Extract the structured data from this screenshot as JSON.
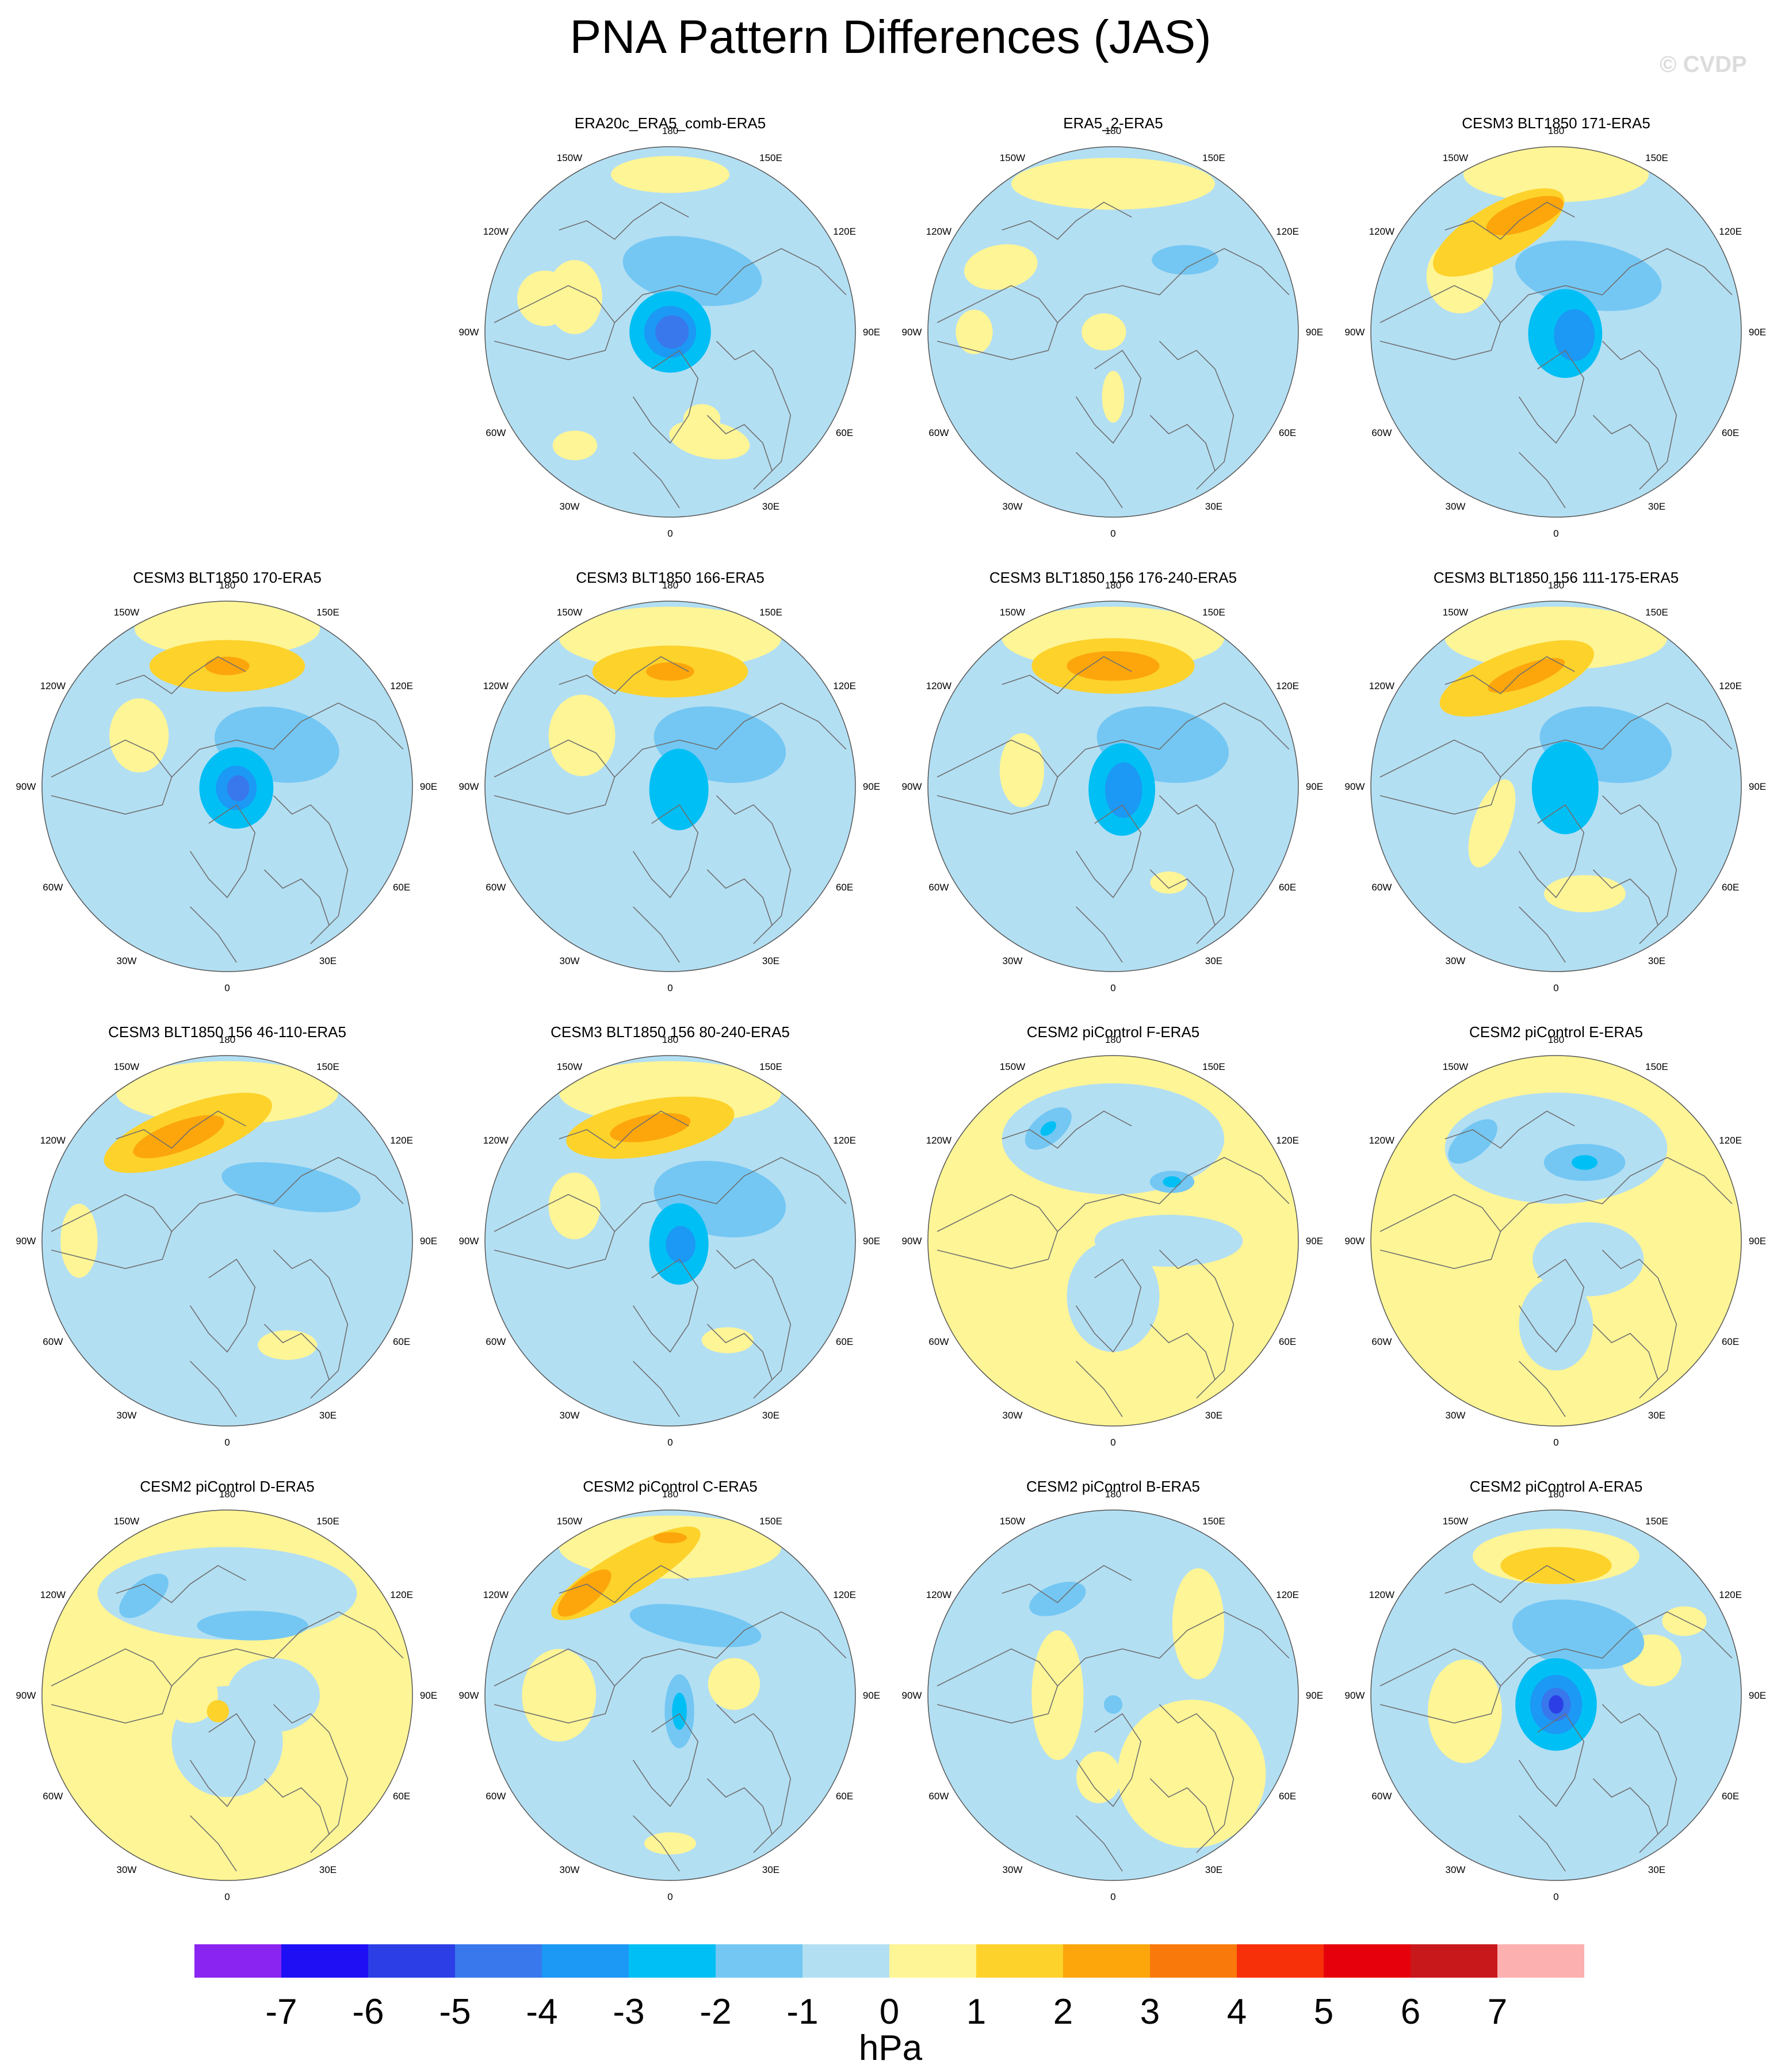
{
  "title": "PNA Pattern Differences (JAS)",
  "watermark": "© CVDP",
  "units": "hPa",
  "lon_labels": [
    "180",
    "150E",
    "120E",
    "90E",
    "60E",
    "30E",
    "0",
    "30W",
    "60W",
    "90W",
    "120W",
    "150W"
  ],
  "colorbar": {
    "labels": [
      "-7",
      "-6",
      "-5",
      "-4",
      "-3",
      "-2",
      "-1",
      "0",
      "1",
      "2",
      "3",
      "4",
      "5",
      "6",
      "7"
    ],
    "colors": [
      "#8a24f0",
      "#1e0ff5",
      "#2c3fe6",
      "#3878ec",
      "#1c98f5",
      "#00bff4",
      "#74c7f3",
      "#b3dff3",
      "#fef596",
      "#fdd22b",
      "#fca60c",
      "#f97a0a",
      "#f8300a",
      "#e6000c",
      "#c9181c",
      "#fdb0b0"
    ]
  },
  "panels": [
    {
      "title": "ERA20c_ERA5_comb-ERA5",
      "row": 0,
      "col": 1,
      "bg": "neg",
      "blobs": [
        {
          "lon": 180,
          "r": 0.85,
          "w": 0.32,
          "h": 0.1,
          "rot": 0,
          "lvl": 1
        },
        {
          "lon": 110,
          "r": 0.55,
          "w": 0.15,
          "h": 0.2,
          "rot": 0,
          "lvl": 1
        },
        {
          "lon": 105,
          "r": 0.7,
          "w": 0.15,
          "h": 0.15,
          "rot": 0,
          "lvl": 1
        },
        {
          "lon": 340,
          "r": 0.5,
          "w": 0.1,
          "h": 0.08,
          "rot": 0,
          "lvl": 1
        },
        {
          "lon": 340,
          "r": 0.62,
          "w": 0.22,
          "h": 0.1,
          "rot": 10,
          "lvl": 1
        },
        {
          "lon": 40,
          "r": 0.8,
          "w": 0.12,
          "h": 0.08,
          "rot": 0,
          "lvl": 1
        },
        {
          "lon": 200,
          "r": 0.35,
          "w": 0.38,
          "h": 0.18,
          "rot": 10,
          "lvl": -2
        },
        {
          "lon": 270,
          "r": 0.0,
          "w": 0.22,
          "h": 0.22,
          "rot": 0,
          "lvl": -3
        },
        {
          "lon": 270,
          "r": 0.0,
          "w": 0.14,
          "h": 0.14,
          "rot": 0,
          "lvl": -4
        },
        {
          "lon": 270,
          "r": 0.01,
          "w": 0.09,
          "h": 0.09,
          "rot": 0,
          "lvl": -5
        }
      ]
    },
    {
      "title": "ERA5_2-ERA5",
      "row": 0,
      "col": 2,
      "bg": "neg",
      "blobs": [
        {
          "lon": 180,
          "r": 0.8,
          "w": 0.55,
          "h": 0.14,
          "rot": 0,
          "lvl": 1
        },
        {
          "lon": 120,
          "r": 0.7,
          "w": 0.2,
          "h": 0.12,
          "rot": -10,
          "lvl": 1
        },
        {
          "lon": 90,
          "r": 0.75,
          "w": 0.1,
          "h": 0.12,
          "rot": 0,
          "lvl": 1
        },
        {
          "lon": 90,
          "r": 0.05,
          "w": 0.12,
          "h": 0.1,
          "rot": 0,
          "lvl": 1
        },
        {
          "lon": 0,
          "r": 0.35,
          "w": 0.06,
          "h": 0.14,
          "rot": 0,
          "lvl": 1
        },
        {
          "lon": 225,
          "r": 0.55,
          "w": 0.18,
          "h": 0.08,
          "rot": 0,
          "lvl": -2
        }
      ]
    },
    {
      "title": "CESM3 BLT1850 171-ERA5",
      "row": 0,
      "col": 3,
      "bg": "neg",
      "blobs": [
        {
          "lon": 180,
          "r": 0.85,
          "w": 0.5,
          "h": 0.15,
          "rot": 0,
          "lvl": 1
        },
        {
          "lon": 150,
          "r": 0.62,
          "w": 0.4,
          "h": 0.15,
          "rot": -30,
          "lvl": 2
        },
        {
          "lon": 165,
          "r": 0.65,
          "w": 0.22,
          "h": 0.08,
          "rot": -20,
          "lvl": 3
        },
        {
          "lon": 120,
          "r": 0.6,
          "w": 0.18,
          "h": 0.2,
          "rot": 0,
          "lvl": 1
        },
        {
          "lon": 210,
          "r": 0.35,
          "w": 0.4,
          "h": 0.18,
          "rot": 10,
          "lvl": -2
        },
        {
          "lon": 280,
          "r": 0.05,
          "w": 0.2,
          "h": 0.24,
          "rot": 0,
          "lvl": -3
        },
        {
          "lon": 280,
          "r": 0.1,
          "w": 0.11,
          "h": 0.14,
          "rot": 0,
          "lvl": -4
        }
      ]
    },
    {
      "title": "CESM3 BLT1850 170-ERA5",
      "row": 1,
      "col": 0,
      "bg": "neg",
      "blobs": [
        {
          "lon": 180,
          "r": 0.85,
          "w": 0.5,
          "h": 0.15,
          "rot": 0,
          "lvl": 1
        },
        {
          "lon": 180,
          "r": 0.65,
          "w": 0.42,
          "h": 0.14,
          "rot": 0,
          "lvl": 2
        },
        {
          "lon": 180,
          "r": 0.65,
          "w": 0.12,
          "h": 0.05,
          "rot": 0,
          "lvl": 3
        },
        {
          "lon": 120,
          "r": 0.55,
          "w": 0.16,
          "h": 0.2,
          "rot": 0,
          "lvl": 1
        },
        {
          "lon": 230,
          "r": 0.35,
          "w": 0.34,
          "h": 0.2,
          "rot": 10,
          "lvl": -2
        },
        {
          "lon": 280,
          "r": 0.05,
          "w": 0.2,
          "h": 0.22,
          "rot": 0,
          "lvl": -3
        },
        {
          "lon": 280,
          "r": 0.05,
          "w": 0.11,
          "h": 0.12,
          "rot": 0,
          "lvl": -4
        },
        {
          "lon": 280,
          "r": 0.06,
          "w": 0.06,
          "h": 0.07,
          "rot": 0,
          "lvl": -5
        }
      ]
    },
    {
      "title": "CESM3 BLT1850 166-ERA5",
      "row": 1,
      "col": 1,
      "bg": "neg",
      "blobs": [
        {
          "lon": 180,
          "r": 0.8,
          "w": 0.6,
          "h": 0.17,
          "rot": 0,
          "lvl": 1
        },
        {
          "lon": 180,
          "r": 0.62,
          "w": 0.42,
          "h": 0.14,
          "rot": 0,
          "lvl": 2
        },
        {
          "lon": 180,
          "r": 0.62,
          "w": 0.13,
          "h": 0.05,
          "rot": 0,
          "lvl": 3
        },
        {
          "lon": 120,
          "r": 0.55,
          "w": 0.18,
          "h": 0.22,
          "rot": 0,
          "lvl": 1
        },
        {
          "lon": 230,
          "r": 0.35,
          "w": 0.36,
          "h": 0.2,
          "rot": 10,
          "lvl": -2
        },
        {
          "lon": 290,
          "r": 0.05,
          "w": 0.16,
          "h": 0.22,
          "rot": 0,
          "lvl": -3
        }
      ]
    },
    {
      "title": "CESM3 BLT1850 156 176-240-ERA5",
      "row": 1,
      "col": 2,
      "bg": "neg",
      "blobs": [
        {
          "lon": 180,
          "r": 0.8,
          "w": 0.6,
          "h": 0.17,
          "rot": 0,
          "lvl": 1
        },
        {
          "lon": 180,
          "r": 0.65,
          "w": 0.44,
          "h": 0.15,
          "rot": 0,
          "lvl": 2
        },
        {
          "lon": 180,
          "r": 0.65,
          "w": 0.25,
          "h": 0.08,
          "rot": 0,
          "lvl": 3
        },
        {
          "lon": 100,
          "r": 0.5,
          "w": 0.12,
          "h": 0.2,
          "rot": 0,
          "lvl": 1
        },
        {
          "lon": 330,
          "r": 0.6,
          "w": 0.1,
          "h": 0.06,
          "rot": 0,
          "lvl": 1
        },
        {
          "lon": 230,
          "r": 0.35,
          "w": 0.36,
          "h": 0.2,
          "rot": 10,
          "lvl": -2
        },
        {
          "lon": 290,
          "r": 0.05,
          "w": 0.18,
          "h": 0.25,
          "rot": 0,
          "lvl": -3
        },
        {
          "lon": 290,
          "r": 0.06,
          "w": 0.1,
          "h": 0.15,
          "rot": 0,
          "lvl": -4
        }
      ]
    },
    {
      "title": "CESM3 BLT1850 156 111-175-ERA5",
      "row": 1,
      "col": 3,
      "bg": "neg",
      "blobs": [
        {
          "lon": 180,
          "r": 0.8,
          "w": 0.6,
          "h": 0.17,
          "rot": 0,
          "lvl": 1
        },
        {
          "lon": 160,
          "r": 0.62,
          "w": 0.44,
          "h": 0.15,
          "rot": -20,
          "lvl": 2
        },
        {
          "lon": 165,
          "r": 0.62,
          "w": 0.22,
          "h": 0.06,
          "rot": -20,
          "lvl": 3
        },
        {
          "lon": 60,
          "r": 0.4,
          "w": 0.1,
          "h": 0.25,
          "rot": 20,
          "lvl": 1
        },
        {
          "lon": 345,
          "r": 0.6,
          "w": 0.22,
          "h": 0.1,
          "rot": 0,
          "lvl": 1
        },
        {
          "lon": 230,
          "r": 0.35,
          "w": 0.36,
          "h": 0.2,
          "rot": 10,
          "lvl": -2
        },
        {
          "lon": 280,
          "r": 0.05,
          "w": 0.18,
          "h": 0.25,
          "rot": 0,
          "lvl": -3
        }
      ]
    },
    {
      "title": "CESM3 BLT1850 156 46-110-ERA5",
      "row": 2,
      "col": 0,
      "bg": "neg",
      "blobs": [
        {
          "lon": 180,
          "r": 0.8,
          "w": 0.6,
          "h": 0.17,
          "rot": 0,
          "lvl": 1
        },
        {
          "lon": 160,
          "r": 0.62,
          "w": 0.48,
          "h": 0.15,
          "rot": -20,
          "lvl": 2
        },
        {
          "lon": 155,
          "r": 0.62,
          "w": 0.26,
          "h": 0.08,
          "rot": -20,
          "lvl": 3
        },
        {
          "lon": 90,
          "r": 0.8,
          "w": 0.1,
          "h": 0.2,
          "rot": 0,
          "lvl": 1
        },
        {
          "lon": 330,
          "r": 0.65,
          "w": 0.16,
          "h": 0.08,
          "rot": 0,
          "lvl": 1
        },
        {
          "lon": 230,
          "r": 0.45,
          "w": 0.38,
          "h": 0.12,
          "rot": 10,
          "lvl": -2
        }
      ]
    },
    {
      "title": "CESM3 BLT1850 156 80-240-ERA5",
      "row": 2,
      "col": 1,
      "bg": "neg",
      "blobs": [
        {
          "lon": 180,
          "r": 0.8,
          "w": 0.6,
          "h": 0.17,
          "rot": 0,
          "lvl": 1
        },
        {
          "lon": 170,
          "r": 0.62,
          "w": 0.46,
          "h": 0.15,
          "rot": -10,
          "lvl": 2
        },
        {
          "lon": 170,
          "r": 0.62,
          "w": 0.22,
          "h": 0.07,
          "rot": -10,
          "lvl": 3
        },
        {
          "lon": 110,
          "r": 0.55,
          "w": 0.14,
          "h": 0.18,
          "rot": 0,
          "lvl": 1
        },
        {
          "lon": 330,
          "r": 0.62,
          "w": 0.14,
          "h": 0.07,
          "rot": 0,
          "lvl": 1
        },
        {
          "lon": 230,
          "r": 0.35,
          "w": 0.36,
          "h": 0.2,
          "rot": 10,
          "lvl": -2
        },
        {
          "lon": 290,
          "r": 0.05,
          "w": 0.16,
          "h": 0.22,
          "rot": 0,
          "lvl": -3
        },
        {
          "lon": 290,
          "r": 0.06,
          "w": 0.08,
          "h": 0.1,
          "rot": 0,
          "lvl": -4
        }
      ]
    },
    {
      "title": "CESM2 piControl F-ERA5",
      "row": 2,
      "col": 2,
      "bg": "pos",
      "blobs": [
        {
          "lon": 180,
          "r": 0.55,
          "w": 0.6,
          "h": 0.3,
          "rot": 0,
          "lvl": -1
        },
        {
          "lon": 0,
          "r": 0.3,
          "w": 0.25,
          "h": 0.3,
          "rot": 0,
          "lvl": -1
        },
        {
          "lon": 270,
          "r": 0.3,
          "w": 0.4,
          "h": 0.14,
          "rot": 0,
          "lvl": -1
        },
        {
          "lon": 150,
          "r": 0.7,
          "w": 0.15,
          "h": 0.08,
          "rot": -40,
          "lvl": -2
        },
        {
          "lon": 150,
          "r": 0.7,
          "w": 0.05,
          "h": 0.03,
          "rot": -40,
          "lvl": -3
        },
        {
          "lon": 225,
          "r": 0.45,
          "w": 0.12,
          "h": 0.06,
          "rot": 0,
          "lvl": -2
        },
        {
          "lon": 225,
          "r": 0.45,
          "w": 0.05,
          "h": 0.03,
          "rot": 0,
          "lvl": -3
        }
      ]
    },
    {
      "title": "CESM2 piControl E-ERA5",
      "row": 2,
      "col": 3,
      "bg": "pos",
      "blobs": [
        {
          "lon": 180,
          "r": 0.5,
          "w": 0.6,
          "h": 0.3,
          "rot": 0,
          "lvl": -1
        },
        {
          "lon": 300,
          "r": 0.2,
          "w": 0.3,
          "h": 0.2,
          "rot": 0,
          "lvl": -1
        },
        {
          "lon": 0,
          "r": 0.45,
          "w": 0.2,
          "h": 0.25,
          "rot": 0,
          "lvl": -1
        },
        {
          "lon": 200,
          "r": 0.45,
          "w": 0.22,
          "h": 0.1,
          "rot": 0,
          "lvl": -2
        },
        {
          "lon": 200,
          "r": 0.45,
          "w": 0.07,
          "h": 0.04,
          "rot": 0,
          "lvl": -3
        },
        {
          "lon": 140,
          "r": 0.7,
          "w": 0.16,
          "h": 0.08,
          "rot": -40,
          "lvl": -2
        }
      ]
    },
    {
      "title": "CESM2 piControl D-ERA5",
      "row": 3,
      "col": 0,
      "bg": "pos",
      "blobs": [
        {
          "lon": 180,
          "r": 0.55,
          "w": 0.7,
          "h": 0.25,
          "rot": 0,
          "lvl": -1
        },
        {
          "lon": 0,
          "r": 0.25,
          "w": 0.3,
          "h": 0.3,
          "rot": 0,
          "lvl": -1
        },
        {
          "lon": 270,
          "r": 0.25,
          "w": 0.25,
          "h": 0.2,
          "rot": 0,
          "lvl": -1
        },
        {
          "lon": 90,
          "r": 0.2,
          "w": 0.15,
          "h": 0.15,
          "rot": 0,
          "lvl": 1
        },
        {
          "lon": 200,
          "r": 0.4,
          "w": 0.3,
          "h": 0.08,
          "rot": 0,
          "lvl": -2
        },
        {
          "lon": 140,
          "r": 0.7,
          "w": 0.16,
          "h": 0.08,
          "rot": -40,
          "lvl": -2
        },
        {
          "lon": 30,
          "r": 0.1,
          "w": 0.06,
          "h": 0.06,
          "rot": 0,
          "lvl": 2
        }
      ]
    },
    {
      "title": "CESM2 piControl C-ERA5",
      "row": 3,
      "col": 1,
      "bg": "neg",
      "blobs": [
        {
          "lon": 180,
          "r": 0.8,
          "w": 0.6,
          "h": 0.17,
          "rot": 0,
          "lvl": 1
        },
        {
          "lon": 160,
          "r": 0.7,
          "w": 0.46,
          "h": 0.12,
          "rot": -30,
          "lvl": 2
        },
        {
          "lon": 140,
          "r": 0.72,
          "w": 0.18,
          "h": 0.07,
          "rot": -40,
          "lvl": 3
        },
        {
          "lon": 180,
          "r": 0.85,
          "w": 0.09,
          "h": 0.03,
          "rot": 0,
          "lvl": 3
        },
        {
          "lon": 90,
          "r": 0.6,
          "w": 0.2,
          "h": 0.25,
          "rot": 0,
          "lvl": 1
        },
        {
          "lon": 260,
          "r": 0.35,
          "w": 0.14,
          "h": 0.14,
          "rot": 0,
          "lvl": 1
        },
        {
          "lon": 0,
          "r": 0.8,
          "w": 0.14,
          "h": 0.06,
          "rot": 0,
          "lvl": 1
        },
        {
          "lon": 200,
          "r": 0.4,
          "w": 0.36,
          "h": 0.1,
          "rot": 10,
          "lvl": -2
        },
        {
          "lon": 330,
          "r": 0.1,
          "w": 0.08,
          "h": 0.2,
          "rot": 0,
          "lvl": -2
        },
        {
          "lon": 330,
          "r": 0.1,
          "w": 0.04,
          "h": 0.1,
          "rot": 0,
          "lvl": -3
        }
      ]
    },
    {
      "title": "CESM2 piControl B-ERA5",
      "row": 3,
      "col": 2,
      "bg": "neg",
      "blobs": [
        {
          "lon": 315,
          "r": 0.6,
          "w": 0.4,
          "h": 0.4,
          "rot": 0,
          "lvl": 1
        },
        {
          "lon": 90,
          "r": 0.3,
          "w": 0.14,
          "h": 0.35,
          "rot": 0,
          "lvl": 1
        },
        {
          "lon": 230,
          "r": 0.6,
          "w": 0.14,
          "h": 0.3,
          "rot": 0,
          "lvl": 1
        },
        {
          "lon": 10,
          "r": 0.45,
          "w": 0.12,
          "h": 0.14,
          "rot": 0,
          "lvl": 1
        },
        {
          "lon": 150,
          "r": 0.6,
          "w": 0.16,
          "h": 0.08,
          "rot": -20,
          "lvl": -2
        },
        {
          "lon": 0,
          "r": 0.05,
          "w": 0.05,
          "h": 0.05,
          "rot": 0,
          "lvl": -2
        }
      ]
    },
    {
      "title": "CESM2 piControl A-ERA5",
      "row": 3,
      "col": 3,
      "bg": "neg",
      "blobs": [
        {
          "lon": 180,
          "r": 0.7,
          "w": 0.3,
          "h": 0.1,
          "rot": 0,
          "lvl": 2
        },
        {
          "lon": 180,
          "r": 0.75,
          "w": 0.45,
          "h": 0.15,
          "rot": 0,
          "lvl": 1
        },
        {
          "lon": 80,
          "r": 0.5,
          "w": 0.2,
          "h": 0.28,
          "rot": 0,
          "lvl": 1
        },
        {
          "lon": 250,
          "r": 0.55,
          "w": 0.16,
          "h": 0.14,
          "rot": 0,
          "lvl": 1
        },
        {
          "lon": 240,
          "r": 0.8,
          "w": 0.12,
          "h": 0.08,
          "rot": 0,
          "lvl": 1
        },
        {
          "lon": 200,
          "r": 0.35,
          "w": 0.36,
          "h": 0.18,
          "rot": 10,
          "lvl": -2
        },
        {
          "lon": 0,
          "r": 0.05,
          "w": 0.22,
          "h": 0.25,
          "rot": 0,
          "lvl": -3
        },
        {
          "lon": 0,
          "r": 0.05,
          "w": 0.14,
          "h": 0.16,
          "rot": 0,
          "lvl": -4
        },
        {
          "lon": 0,
          "r": 0.05,
          "w": 0.08,
          "h": 0.09,
          "rot": 0,
          "lvl": -5
        },
        {
          "lon": 0,
          "r": 0.05,
          "w": 0.04,
          "h": 0.05,
          "rot": 0,
          "lvl": -6
        }
      ]
    }
  ]
}
